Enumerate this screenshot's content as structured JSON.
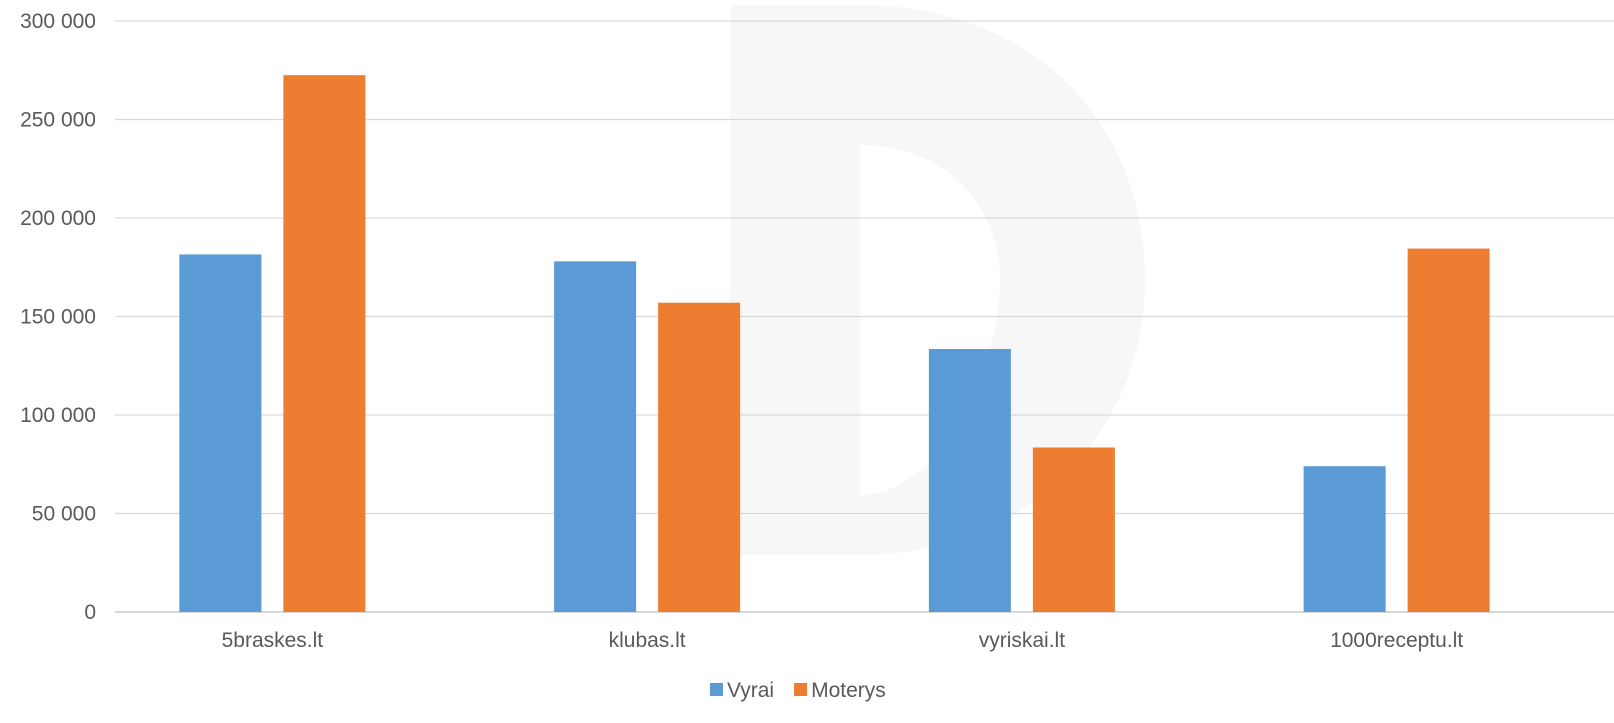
{
  "chart_data": {
    "type": "bar",
    "categories": [
      "5braskes.lt",
      "klubas.lt",
      "vyriskai.lt",
      "1000receptu.lt"
    ],
    "series": [
      {
        "name": "Vyrai",
        "color": "#5b9bd5",
        "values": [
          181500,
          178000,
          133500,
          74000
        ]
      },
      {
        "name": "Moterys",
        "color": "#ed7d31",
        "values": [
          272500,
          157000,
          83500,
          184500
        ]
      }
    ],
    "ylim": [
      0,
      300000
    ],
    "yticks": [
      0,
      50000,
      100000,
      150000,
      200000,
      250000,
      300000
    ],
    "ytick_labels": [
      "0",
      "50 000",
      "100 000",
      "150 000",
      "200 000",
      "250 000",
      "300 000"
    ],
    "grid": true,
    "legend_position": "bottom-center"
  }
}
